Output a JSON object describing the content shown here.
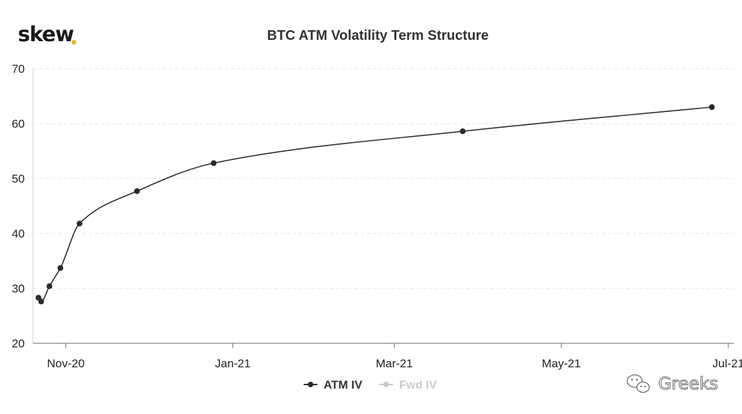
{
  "brand": {
    "logo_text": "skew",
    "logo_dot_color": "#e6b43c"
  },
  "watermark": {
    "text": "Greeks",
    "icon": "wechat-icon"
  },
  "chart_data": {
    "type": "line",
    "title": "BTC ATM Volatility Term Structure",
    "xlabel": "",
    "ylabel": "",
    "ylim": [
      20,
      70
    ],
    "yticks": [
      20,
      30,
      40,
      50,
      60,
      70
    ],
    "xlim": [
      "2020-10-20",
      "2021-07-03"
    ],
    "xticks": [
      {
        "date": "2020-11-01",
        "label": "Nov-20"
      },
      {
        "date": "2021-01-01",
        "label": "Jan-21"
      },
      {
        "date": "2021-03-01",
        "label": "Mar-21"
      },
      {
        "date": "2021-05-01",
        "label": "May-21"
      },
      {
        "date": "2021-07-01",
        "label": "Jul-21"
      }
    ],
    "grid": "horizontal dashed",
    "legend_position": "bottom",
    "series": [
      {
        "name": "ATM IV",
        "color": "#2b2b2b",
        "active": true,
        "points": [
          {
            "x": "2020-10-22",
            "y": 28.3
          },
          {
            "x": "2020-10-23",
            "y": 27.6
          },
          {
            "x": "2020-10-26",
            "y": 30.4
          },
          {
            "x": "2020-10-30",
            "y": 33.7
          },
          {
            "x": "2020-11-06",
            "y": 41.8
          },
          {
            "x": "2020-11-27",
            "y": 47.7
          },
          {
            "x": "2020-12-25",
            "y": 52.8
          },
          {
            "x": "2021-03-26",
            "y": 58.6
          },
          {
            "x": "2021-06-25",
            "y": 63.0
          }
        ]
      },
      {
        "name": "Fwd IV",
        "color": "#c8c8c8",
        "active": false,
        "points": []
      }
    ]
  }
}
